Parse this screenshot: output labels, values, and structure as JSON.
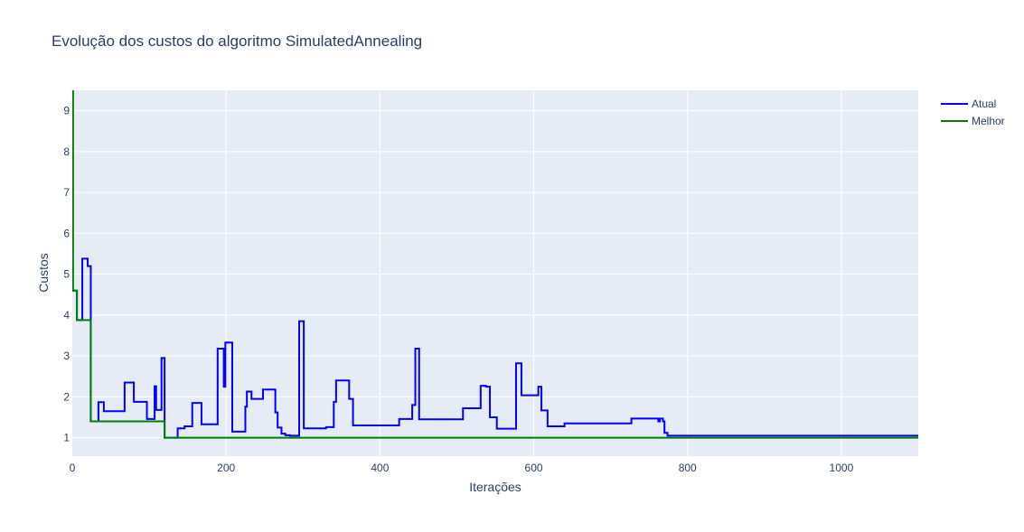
{
  "chart_data": {
    "type": "line",
    "title": "Evolução dos custos do algoritmo SimulatedAnnealing",
    "xlabel": "Iterações",
    "ylabel": "Custos",
    "xlim": [
      0,
      1100
    ],
    "ylim": [
      0.55,
      9.5
    ],
    "x_ticks": [
      0,
      200,
      400,
      600,
      800,
      1000
    ],
    "y_ticks": [
      1,
      2,
      3,
      4,
      5,
      6,
      7,
      8,
      9
    ],
    "grid": true,
    "legend_position": "top-right",
    "series": [
      {
        "name": "Atual",
        "color": "#0000ff",
        "step": true,
        "points": [
          [
            0,
            4.6
          ],
          [
            6,
            3.88
          ],
          [
            13,
            5.38
          ],
          [
            20,
            5.2
          ],
          [
            24,
            1.4
          ],
          [
            34,
            1.87
          ],
          [
            41,
            1.65
          ],
          [
            68,
            2.35
          ],
          [
            80,
            1.88
          ],
          [
            97,
            1.46
          ],
          [
            107,
            2.26
          ],
          [
            109,
            1.68
          ],
          [
            116,
            2.95
          ],
          [
            120,
            1.0
          ],
          [
            137,
            1.23
          ],
          [
            146,
            1.28
          ],
          [
            156,
            1.85
          ],
          [
            168,
            1.33
          ],
          [
            189,
            3.18
          ],
          [
            197,
            2.25
          ],
          [
            199,
            3.33
          ],
          [
            208,
            1.15
          ],
          [
            225,
            1.76
          ],
          [
            227,
            2.13
          ],
          [
            233,
            1.95
          ],
          [
            248,
            2.18
          ],
          [
            264,
            1.62
          ],
          [
            267,
            1.25
          ],
          [
            272,
            1.1
          ],
          [
            277,
            1.06
          ],
          [
            283,
            1.05
          ],
          [
            295,
            3.85
          ],
          [
            301,
            1.23
          ],
          [
            330,
            1.26
          ],
          [
            340,
            1.88
          ],
          [
            343,
            2.4
          ],
          [
            360,
            1.95
          ],
          [
            365,
            1.3
          ],
          [
            425,
            1.46
          ],
          [
            442,
            1.8
          ],
          [
            446,
            3.18
          ],
          [
            451,
            1.45
          ],
          [
            508,
            1.72
          ],
          [
            531,
            2.27
          ],
          [
            538,
            2.25
          ],
          [
            543,
            1.5
          ],
          [
            552,
            1.22
          ],
          [
            577,
            2.82
          ],
          [
            584,
            2.04
          ],
          [
            606,
            2.25
          ],
          [
            610,
            1.67
          ],
          [
            618,
            1.28
          ],
          [
            640,
            1.35
          ],
          [
            727,
            1.47
          ],
          [
            762,
            1.4
          ],
          [
            764,
            1.47
          ],
          [
            768,
            1.4
          ],
          [
            770,
            1.12
          ],
          [
            774,
            1.05
          ],
          [
            1100,
            1.05
          ]
        ]
      },
      {
        "name": "Melhor",
        "color": "#008000",
        "step": true,
        "points": [
          [
            0,
            9.5
          ],
          [
            1,
            4.6
          ],
          [
            6,
            3.88
          ],
          [
            24,
            1.4
          ],
          [
            120,
            1.0
          ],
          [
            1100,
            1.0
          ]
        ]
      }
    ]
  }
}
